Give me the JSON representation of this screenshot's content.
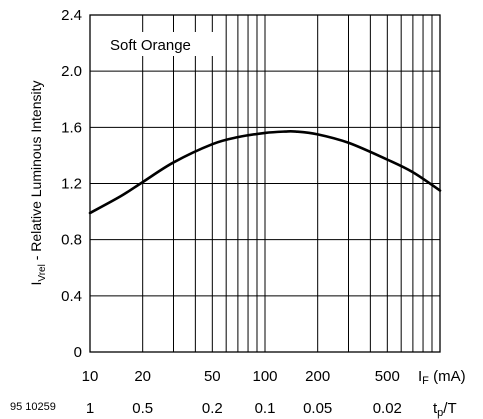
{
  "chart_data": {
    "type": "line",
    "title": "",
    "annotation": "Soft Orange",
    "ylabel_main": "I",
    "ylabel_sub": "Vrel",
    "ylabel_rest": " - Relative Luminous Intensity",
    "xlabel_main": "I",
    "xlabel_sub": "F",
    "xlabel_unit": " (mA)",
    "x2label_main": "t",
    "x2label_sub": "p",
    "x2label_rest": "/T",
    "figure_id": "95 10259",
    "x_scale": "log",
    "xlim": [
      10,
      1000
    ],
    "ylim": [
      0,
      2.4
    ],
    "grid": true,
    "y_ticks": [
      0,
      0.4,
      0.8,
      1.2,
      1.6,
      2.0,
      2.4
    ],
    "y_tick_labels": [
      "0",
      "0.4",
      "0.8",
      "1.2",
      "1.6",
      "2.0",
      "2.4"
    ],
    "x_ticks": [
      10,
      20,
      50,
      100,
      200,
      500
    ],
    "x_tick_labels": [
      "10",
      "20",
      "50",
      "100",
      "200",
      "500"
    ],
    "x2_tick_labels": [
      "1",
      "0.5",
      "0.2",
      "0.1",
      "0.05",
      "0.02"
    ],
    "series": [
      {
        "x": [
          10,
          15,
          20,
          30,
          50,
          70,
          100,
          130,
          150,
          200,
          300,
          500,
          700,
          1000
        ],
        "y": [
          0.99,
          1.11,
          1.21,
          1.35,
          1.48,
          1.53,
          1.56,
          1.57,
          1.57,
          1.55,
          1.49,
          1.37,
          1.28,
          1.15
        ]
      }
    ]
  }
}
